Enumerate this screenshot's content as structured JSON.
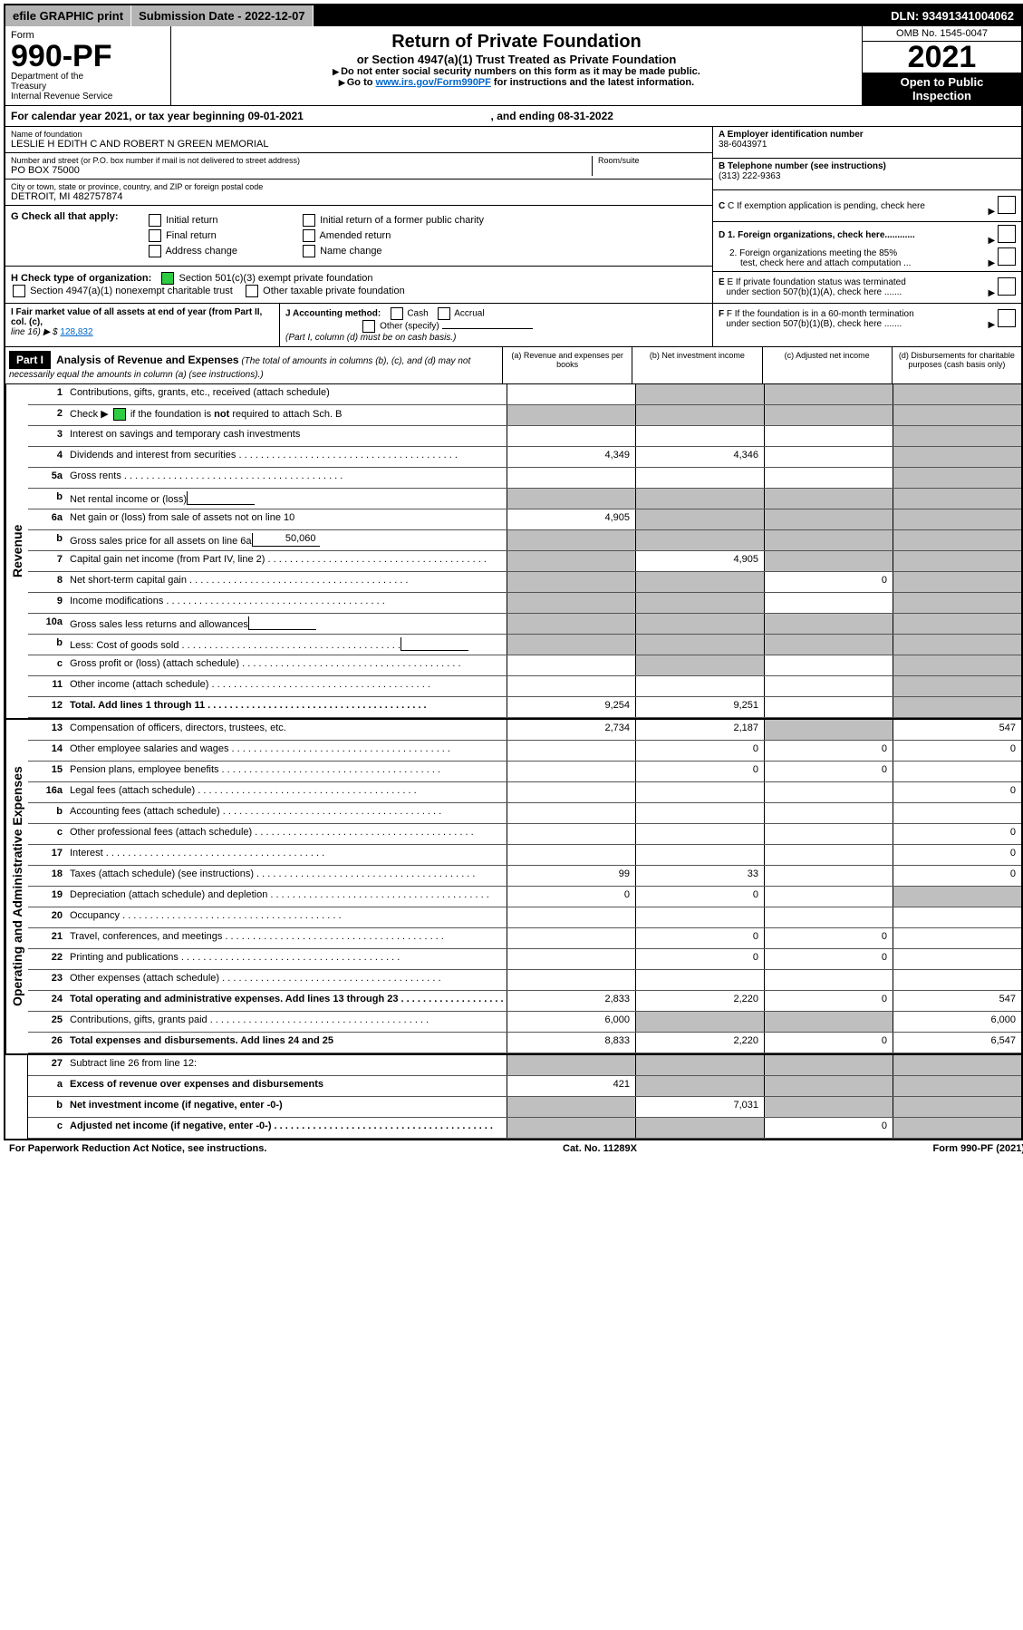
{
  "topbar": {
    "efile": "efile GRAPHIC print",
    "submission_label": "Submission Date - 2022-12-07",
    "dln": "DLN: 93491341004062"
  },
  "header": {
    "form_word": "Form",
    "form_number": "990-PF",
    "dept1": "Department of the",
    "dept2": "Treasury",
    "dept3": "Internal Revenue Service",
    "omb": "OMB No. 1545-0047",
    "year": "2021",
    "open1": "Open to Public",
    "open2": "Inspection",
    "title": "Return of Private Foundation",
    "subtitle": "or Section 4947(a)(1) Trust Treated as Private Foundation",
    "instr1": "Do not enter social security numbers on this form as it may be made public.",
    "instr2a": "Go to ",
    "instr2_link": "www.irs.gov/Form990PF",
    "instr2b": " for instructions and the latest information."
  },
  "calendar": {
    "text_a": "For calendar year 2021, or tax year beginning ",
    "begin": "09-01-2021",
    "text_b": " , and ending ",
    "end": "08-31-2022"
  },
  "name_block": {
    "name_label": "Name of foundation",
    "name": "LESLIE H EDITH C AND ROBERT N GREEN MEMORIAL",
    "addr_label": "Number and street (or P.O. box number if mail is not delivered to street address)",
    "addr": "PO BOX 75000",
    "room_label": "Room/suite",
    "city_label": "City or town, state or province, country, and ZIP or foreign postal code",
    "city": "DETROIT, MI  482757874"
  },
  "right_block": {
    "a_label": "A Employer identification number",
    "a_val": "38-6043971",
    "b_label": "B Telephone number (see instructions)",
    "b_val": "(313) 222-9363",
    "c_label": "C If exemption application is pending, check here",
    "d1": "D 1. Foreign organizations, check here............",
    "d2a": "2. Foreign organizations meeting the 85%",
    "d2b": "test, check here and attach computation ...",
    "e1": "E If private foundation status was terminated",
    "e2": "under section 507(b)(1)(A), check here .......",
    "f1": "F If the foundation is in a 60-month termination",
    "f2": "under section 507(b)(1)(B), check here .......",
    "arrow": "▶"
  },
  "g_block": {
    "label": "G Check all that apply:",
    "o1": "Initial return",
    "o2": "Final return",
    "o3": "Address change",
    "o4": "Initial return of a former public charity",
    "o5": "Amended return",
    "o6": "Name change"
  },
  "h_block": {
    "label": "H Check type of organization:",
    "o1": "Section 501(c)(3) exempt private foundation",
    "o2": "Section 4947(a)(1) nonexempt charitable trust",
    "o3": "Other taxable private foundation"
  },
  "i_block": {
    "label": "I Fair market value of all assets at end of year (from Part II, col. (c),",
    "line16": "line 16) ▶ $",
    "val": "128,832"
  },
  "j_block": {
    "label": "J Accounting method:",
    "cash": "Cash",
    "accrual": "Accrual",
    "other": "Other (specify)",
    "note": "(Part I, column (d) must be on cash basis.)"
  },
  "part1": {
    "tag": "Part I",
    "title": "Analysis of Revenue and Expenses",
    "sub": " (The total of amounts in columns (b), (c), and (d) may not necessarily equal the amounts in column (a) (see instructions).)",
    "col_a": "(a)   Revenue and expenses per books",
    "col_b": "(b)   Net investment income",
    "col_c": "(c)   Adjusted net income",
    "col_d": "(d)   Disbursements for charitable purposes (cash basis only)"
  },
  "side": {
    "revenue": "Revenue",
    "opex": "Operating and Administrative Expenses"
  },
  "rows": {
    "r1": {
      "n": "1",
      "d": "Contributions, gifts, grants, etc., received (attach schedule)"
    },
    "r2": {
      "n": "2",
      "d": "Check ▶       if the foundation is not required to attach Sch. B"
    },
    "r3": {
      "n": "3",
      "d": "Interest on savings and temporary cash investments"
    },
    "r4": {
      "n": "4",
      "d": "Dividends and interest from securities",
      "a": "4,349",
      "b": "4,346"
    },
    "r5a": {
      "n": "5a",
      "d": "Gross rents"
    },
    "r5b": {
      "n": "b",
      "d": "Net rental income or (loss)"
    },
    "r6a": {
      "n": "6a",
      "d": "Net gain or (loss) from sale of assets not on line 10",
      "a": "4,905"
    },
    "r6b": {
      "n": "b",
      "d": "Gross sales price for all assets on line 6a",
      "box": "50,060"
    },
    "r7": {
      "n": "7",
      "d": "Capital gain net income (from Part IV, line 2)",
      "b": "4,905"
    },
    "r8": {
      "n": "8",
      "d": "Net short-term capital gain",
      "c": "0"
    },
    "r9": {
      "n": "9",
      "d": "Income modifications"
    },
    "r10a": {
      "n": "10a",
      "d": "Gross sales less returns and allowances"
    },
    "r10b": {
      "n": "b",
      "d": "Less: Cost of goods sold"
    },
    "r10c": {
      "n": "c",
      "d": "Gross profit or (loss) (attach schedule)"
    },
    "r11": {
      "n": "11",
      "d": "Other income (attach schedule)"
    },
    "r12": {
      "n": "12",
      "d": "Total. Add lines 1 through 11",
      "a": "9,254",
      "b": "9,251",
      "bold": true
    },
    "r13": {
      "n": "13",
      "d": "Compensation of officers, directors, trustees, etc.",
      "a": "2,734",
      "b": "2,187",
      "dd": "547"
    },
    "r14": {
      "n": "14",
      "d": "Other employee salaries and wages",
      "b": "0",
      "c": "0",
      "dd": "0"
    },
    "r15": {
      "n": "15",
      "d": "Pension plans, employee benefits",
      "b": "0",
      "c": "0"
    },
    "r16a": {
      "n": "16a",
      "d": "Legal fees (attach schedule)",
      "dd": "0"
    },
    "r16b": {
      "n": "b",
      "d": "Accounting fees (attach schedule)"
    },
    "r16c": {
      "n": "c",
      "d": "Other professional fees (attach schedule)",
      "dd": "0"
    },
    "r17": {
      "n": "17",
      "d": "Interest",
      "dd": "0"
    },
    "r18": {
      "n": "18",
      "d": "Taxes (attach schedule) (see instructions)",
      "a": "99",
      "b": "33",
      "dd": "0"
    },
    "r19": {
      "n": "19",
      "d": "Depreciation (attach schedule) and depletion",
      "a": "0",
      "b": "0"
    },
    "r20": {
      "n": "20",
      "d": "Occupancy"
    },
    "r21": {
      "n": "21",
      "d": "Travel, conferences, and meetings",
      "b": "0",
      "c": "0"
    },
    "r22": {
      "n": "22",
      "d": "Printing and publications",
      "b": "0",
      "c": "0"
    },
    "r23": {
      "n": "23",
      "d": "Other expenses (attach schedule)"
    },
    "r24": {
      "n": "24",
      "d": "Total operating and administrative expenses. Add lines 13 through 23",
      "a": "2,833",
      "b": "2,220",
      "c": "0",
      "dd": "547",
      "bold": true
    },
    "r25": {
      "n": "25",
      "d": "Contributions, gifts, grants paid",
      "a": "6,000",
      "dd": "6,000"
    },
    "r26": {
      "n": "26",
      "d": "Total expenses and disbursements. Add lines 24 and 25",
      "a": "8,833",
      "b": "2,220",
      "c": "0",
      "dd": "6,547",
      "bold": true
    },
    "r27": {
      "n": "27",
      "d": "Subtract line 26 from line 12:"
    },
    "r27a": {
      "n": "a",
      "d": "Excess of revenue over expenses and disbursements",
      "a": "421",
      "bold": true
    },
    "r27b": {
      "n": "b",
      "d": "Net investment income (if negative, enter -0-)",
      "b": "7,031",
      "bold": true
    },
    "r27c": {
      "n": "c",
      "d": "Adjusted net income (if negative, enter -0-)",
      "c": "0",
      "bold": true
    }
  },
  "footer": {
    "left": "For Paperwork Reduction Act Notice, see instructions.",
    "mid": "Cat. No. 11289X",
    "right_a": "Form ",
    "right_b": "990-PF",
    "right_c": " (2021)"
  },
  "colors": {
    "grey": "#bfbfbf",
    "link": "#0066cc",
    "green": "#2ecc40"
  }
}
